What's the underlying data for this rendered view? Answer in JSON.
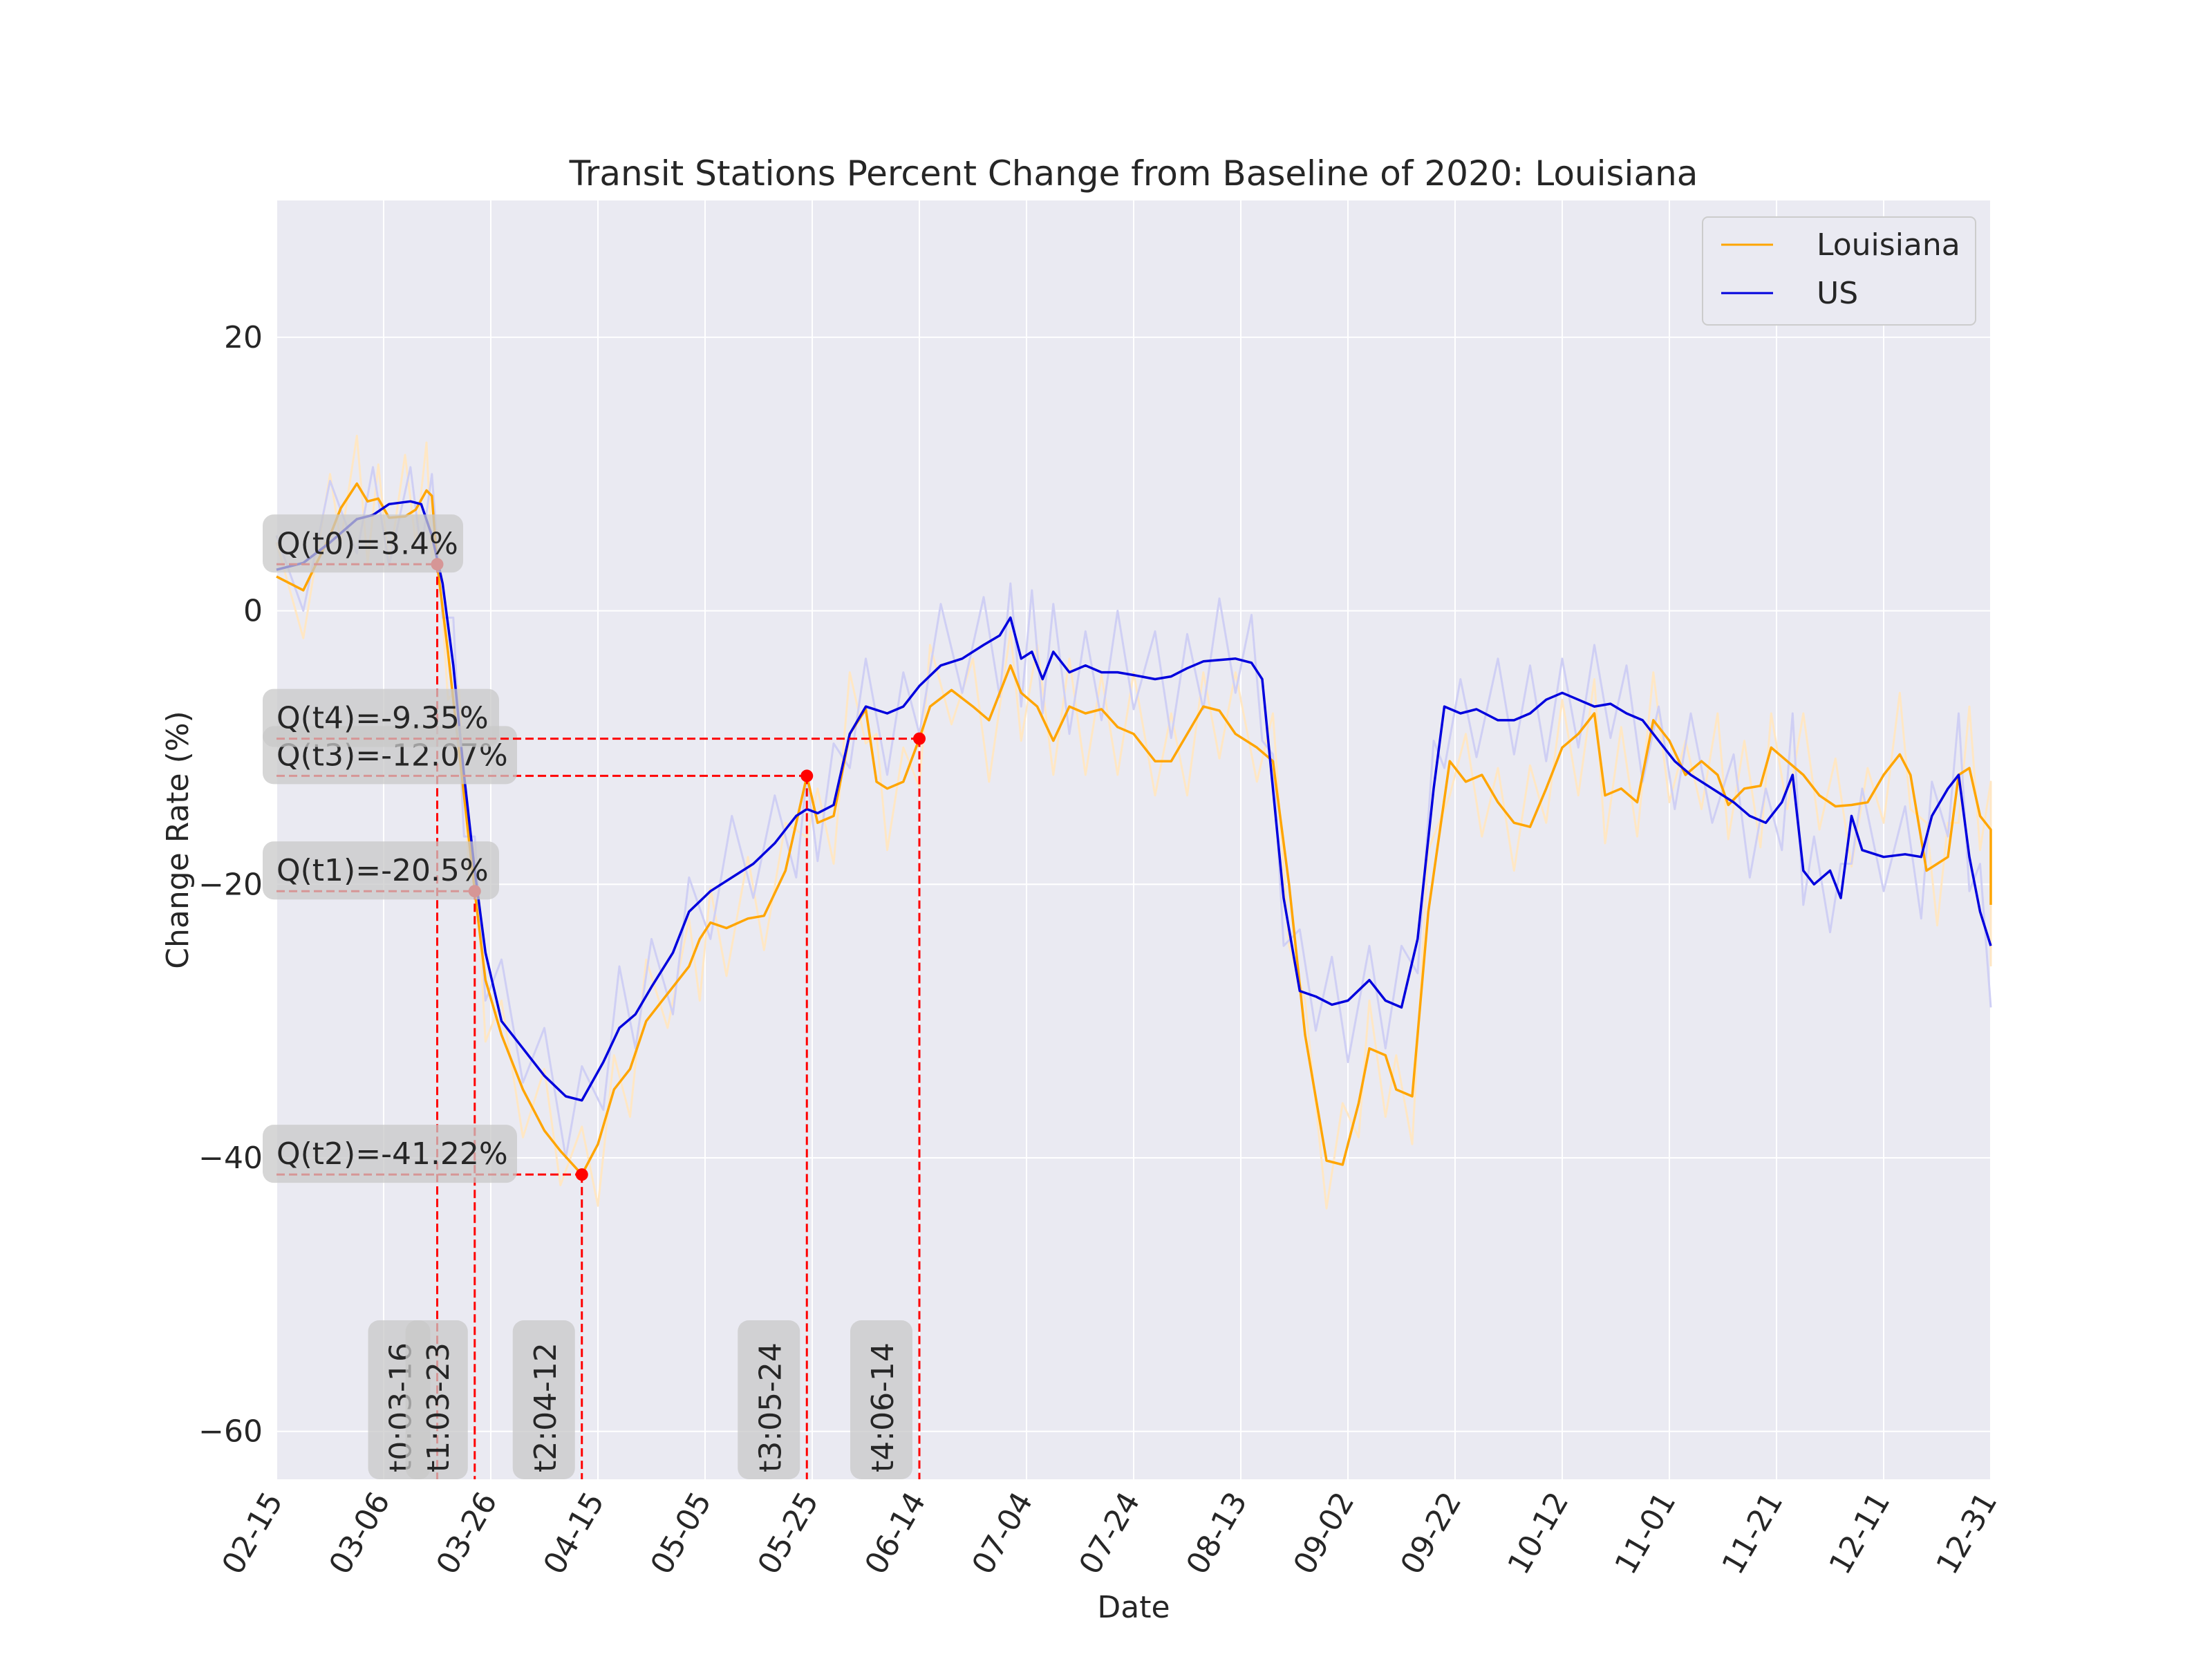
{
  "chart_data": {
    "type": "line",
    "title": "Transit Stations Percent Change from Baseline of 2020: Louisiana",
    "xlabel": "Date",
    "ylabel": "Change Rate (%)",
    "x_range": [
      "2020-02-15",
      "2020-12-31"
    ],
    "ylim": [
      -63.5,
      30
    ],
    "x_ticks": [
      "02-15",
      "03-06",
      "03-26",
      "04-15",
      "05-05",
      "05-25",
      "06-14",
      "07-04",
      "07-24",
      "08-13",
      "09-02",
      "09-22",
      "10-12",
      "11-01",
      "11-21",
      "12-11",
      "12-31"
    ],
    "y_ticks": [
      20,
      0,
      -20,
      -40,
      -60
    ],
    "y_tick_labels": [
      "20",
      "0",
      "−20",
      "−40",
      "−60"
    ],
    "grid": true,
    "legend": {
      "position": "top-right",
      "entries": [
        "Louisiana",
        "US"
      ]
    },
    "colors": {
      "louisiana": "#ffa500",
      "us": "#0000dd",
      "louisiana_raw": "#ffe7c4",
      "us_raw": "#cfcff4",
      "annotation": "#ff0000",
      "background": "#eaeaf2"
    },
    "series": [
      {
        "name": "Louisiana",
        "points": [
          [
            "2020-02-15",
            2.5
          ],
          [
            "2020-02-20",
            1.5
          ],
          [
            "2020-02-25",
            5.5
          ],
          [
            "2020-02-27",
            7.5
          ],
          [
            "2020-03-01",
            9.3
          ],
          [
            "2020-03-03",
            8
          ],
          [
            "2020-03-05",
            8.2
          ],
          [
            "2020-03-07",
            6.8
          ],
          [
            "2020-03-10",
            6.9
          ],
          [
            "2020-03-12",
            7.4
          ],
          [
            "2020-03-14",
            8.8
          ],
          [
            "2020-03-15",
            8.4
          ],
          [
            "2020-03-16",
            3.4
          ],
          [
            "2020-03-18",
            -3
          ],
          [
            "2020-03-20",
            -10
          ],
          [
            "2020-03-22",
            -17
          ],
          [
            "2020-03-23",
            -20.5
          ],
          [
            "2020-03-25",
            -27
          ],
          [
            "2020-03-28",
            -31
          ],
          [
            "2020-04-01",
            -35
          ],
          [
            "2020-04-05",
            -38
          ],
          [
            "2020-04-08",
            -39.5
          ],
          [
            "2020-04-12",
            -41.22
          ],
          [
            "2020-04-15",
            -39
          ],
          [
            "2020-04-18",
            -35
          ],
          [
            "2020-04-21",
            -33.5
          ],
          [
            "2020-04-24",
            -30
          ],
          [
            "2020-04-28",
            -28
          ],
          [
            "2020-05-02",
            -26
          ],
          [
            "2020-05-04",
            -24
          ],
          [
            "2020-05-06",
            -22.8
          ],
          [
            "2020-05-09",
            -23.2
          ],
          [
            "2020-05-13",
            -22.5
          ],
          [
            "2020-05-16",
            -22.3
          ],
          [
            "2020-05-20",
            -19
          ],
          [
            "2020-05-24",
            -12.07
          ],
          [
            "2020-05-26",
            -15.5
          ],
          [
            "2020-05-29",
            -15
          ],
          [
            "2020-06-01",
            -9
          ],
          [
            "2020-06-04",
            -7.2
          ],
          [
            "2020-06-06",
            -12.5
          ],
          [
            "2020-06-08",
            -13
          ],
          [
            "2020-06-11",
            -12.5
          ],
          [
            "2020-06-14",
            -9.35
          ],
          [
            "2020-06-16",
            -7
          ],
          [
            "2020-06-20",
            -5.8
          ],
          [
            "2020-06-24",
            -7
          ],
          [
            "2020-06-27",
            -8
          ],
          [
            "2020-07-01",
            -4
          ],
          [
            "2020-07-03",
            -6
          ],
          [
            "2020-07-06",
            -7
          ],
          [
            "2020-07-09",
            -9.5
          ],
          [
            "2020-07-12",
            -7
          ],
          [
            "2020-07-15",
            -7.5
          ],
          [
            "2020-07-18",
            -7.2
          ],
          [
            "2020-07-21",
            -8.5
          ],
          [
            "2020-07-24",
            -9
          ],
          [
            "2020-07-28",
            -11
          ],
          [
            "2020-07-31",
            -11
          ],
          [
            "2020-08-03",
            -9
          ],
          [
            "2020-08-06",
            -7
          ],
          [
            "2020-08-09",
            -7.3
          ],
          [
            "2020-08-12",
            -9
          ],
          [
            "2020-08-16",
            -10
          ],
          [
            "2020-08-19",
            -11
          ],
          [
            "2020-08-22",
            -20
          ],
          [
            "2020-08-25",
            -31
          ],
          [
            "2020-08-29",
            -40.2
          ],
          [
            "2020-09-01",
            -40.5
          ],
          [
            "2020-09-04",
            -36
          ],
          [
            "2020-09-06",
            -32
          ],
          [
            "2020-09-09",
            -32.5
          ],
          [
            "2020-09-11",
            -35
          ],
          [
            "2020-09-14",
            -35.5
          ],
          [
            "2020-09-17",
            -22
          ],
          [
            "2020-09-21",
            -11
          ],
          [
            "2020-09-24",
            -12.5
          ],
          [
            "2020-09-27",
            -12
          ],
          [
            "2020-09-30",
            -14
          ],
          [
            "2020-10-03",
            -15.5
          ],
          [
            "2020-10-06",
            -15.8
          ],
          [
            "2020-10-09",
            -13
          ],
          [
            "2020-10-12",
            -10
          ],
          [
            "2020-10-15",
            -9
          ],
          [
            "2020-10-18",
            -7.5
          ],
          [
            "2020-10-20",
            -13.5
          ],
          [
            "2020-10-23",
            -13
          ],
          [
            "2020-10-26",
            -14
          ],
          [
            "2020-10-29",
            -8
          ],
          [
            "2020-11-01",
            -9.5
          ],
          [
            "2020-11-04",
            -12
          ],
          [
            "2020-11-07",
            -11
          ],
          [
            "2020-11-10",
            -12
          ],
          [
            "2020-11-12",
            -14.2
          ],
          [
            "2020-11-15",
            -13
          ],
          [
            "2020-11-18",
            -12.8
          ],
          [
            "2020-11-20",
            -10
          ],
          [
            "2020-11-23",
            -11
          ],
          [
            "2020-11-26",
            -12
          ],
          [
            "2020-11-29",
            -13.5
          ],
          [
            "2020-12-02",
            -14.3
          ],
          [
            "2020-12-05",
            -14.2
          ],
          [
            "2020-12-08",
            -14
          ],
          [
            "2020-12-11",
            -12
          ],
          [
            "2020-12-14",
            -10.5
          ],
          [
            "2020-12-16",
            -12
          ],
          [
            "2020-12-19",
            -19
          ],
          [
            "2020-12-21",
            -18.5
          ],
          [
            "2020-12-23",
            -18
          ],
          [
            "2020-12-25",
            -12
          ],
          [
            "2020-12-27",
            -11.5
          ],
          [
            "2020-12-29",
            -15
          ],
          [
            "2020-12-31",
            -16
          ],
          [
            "2020-12-31",
            -21.5
          ]
        ]
      },
      {
        "name": "US",
        "points": [
          [
            "2020-02-15",
            3
          ],
          [
            "2020-02-20",
            3.5
          ],
          [
            "2020-02-25",
            5
          ],
          [
            "2020-03-01",
            6.7
          ],
          [
            "2020-03-04",
            7
          ],
          [
            "2020-03-07",
            7.8
          ],
          [
            "2020-03-11",
            8
          ],
          [
            "2020-03-13",
            7.8
          ],
          [
            "2020-03-15",
            5.5
          ],
          [
            "2020-03-17",
            2
          ],
          [
            "2020-03-19",
            -4
          ],
          [
            "2020-03-21",
            -12
          ],
          [
            "2020-03-23",
            -19
          ],
          [
            "2020-03-25",
            -25
          ],
          [
            "2020-03-28",
            -30
          ],
          [
            "2020-04-01",
            -32
          ],
          [
            "2020-04-05",
            -34
          ],
          [
            "2020-04-09",
            -35.5
          ],
          [
            "2020-04-12",
            -35.8
          ],
          [
            "2020-04-16",
            -33
          ],
          [
            "2020-04-19",
            -30.5
          ],
          [
            "2020-04-22",
            -29.5
          ],
          [
            "2020-04-25",
            -27.5
          ],
          [
            "2020-04-29",
            -25
          ],
          [
            "2020-05-02",
            -22
          ],
          [
            "2020-05-06",
            -20.5
          ],
          [
            "2020-05-10",
            -19.5
          ],
          [
            "2020-05-14",
            -18.5
          ],
          [
            "2020-05-18",
            -17
          ],
          [
            "2020-05-22",
            -15
          ],
          [
            "2020-05-24",
            -14.5
          ],
          [
            "2020-05-26",
            -14.8
          ],
          [
            "2020-05-29",
            -14.2
          ],
          [
            "2020-06-01",
            -9
          ],
          [
            "2020-06-04",
            -7
          ],
          [
            "2020-06-08",
            -7.5
          ],
          [
            "2020-06-11",
            -7
          ],
          [
            "2020-06-14",
            -5.5
          ],
          [
            "2020-06-18",
            -4
          ],
          [
            "2020-06-22",
            -3.5
          ],
          [
            "2020-06-26",
            -2.5
          ],
          [
            "2020-06-29",
            -1.8
          ],
          [
            "2020-07-01",
            -0.5
          ],
          [
            "2020-07-03",
            -3.5
          ],
          [
            "2020-07-05",
            -3
          ],
          [
            "2020-07-07",
            -5
          ],
          [
            "2020-07-09",
            -3
          ],
          [
            "2020-07-12",
            -4.5
          ],
          [
            "2020-07-15",
            -4
          ],
          [
            "2020-07-18",
            -4.5
          ],
          [
            "2020-07-21",
            -4.5
          ],
          [
            "2020-07-24",
            -4.7
          ],
          [
            "2020-07-28",
            -5
          ],
          [
            "2020-07-31",
            -4.8
          ],
          [
            "2020-08-03",
            -4.2
          ],
          [
            "2020-08-06",
            -3.7
          ],
          [
            "2020-08-09",
            -3.6
          ],
          [
            "2020-08-12",
            -3.5
          ],
          [
            "2020-08-15",
            -3.8
          ],
          [
            "2020-08-17",
            -5
          ],
          [
            "2020-08-19",
            -13
          ],
          [
            "2020-08-21",
            -21
          ],
          [
            "2020-08-24",
            -27.8
          ],
          [
            "2020-08-27",
            -28.2
          ],
          [
            "2020-08-30",
            -28.8
          ],
          [
            "2020-09-02",
            -28.5
          ],
          [
            "2020-09-06",
            -27
          ],
          [
            "2020-09-09",
            -28.5
          ],
          [
            "2020-09-12",
            -29
          ],
          [
            "2020-09-15",
            -24
          ],
          [
            "2020-09-18",
            -13
          ],
          [
            "2020-09-20",
            -7
          ],
          [
            "2020-09-23",
            -7.5
          ],
          [
            "2020-09-26",
            -7.2
          ],
          [
            "2020-09-30",
            -8
          ],
          [
            "2020-10-03",
            -8
          ],
          [
            "2020-10-06",
            -7.5
          ],
          [
            "2020-10-09",
            -6.5
          ],
          [
            "2020-10-12",
            -6
          ],
          [
            "2020-10-15",
            -6.5
          ],
          [
            "2020-10-18",
            -7
          ],
          [
            "2020-10-21",
            -6.8
          ],
          [
            "2020-10-24",
            -7.5
          ],
          [
            "2020-10-27",
            -8
          ],
          [
            "2020-10-30",
            -9.5
          ],
          [
            "2020-11-02",
            -11
          ],
          [
            "2020-11-05",
            -12
          ],
          [
            "2020-11-09",
            -13
          ],
          [
            "2020-11-13",
            -14
          ],
          [
            "2020-11-16",
            -15
          ],
          [
            "2020-11-19",
            -15.5
          ],
          [
            "2020-11-22",
            -14
          ],
          [
            "2020-11-24",
            -12
          ],
          [
            "2020-11-26",
            -19
          ],
          [
            "2020-11-28",
            -20
          ],
          [
            "2020-12-01",
            -19
          ],
          [
            "2020-12-03",
            -21
          ],
          [
            "2020-12-05",
            -15
          ],
          [
            "2020-12-07",
            -17.5
          ],
          [
            "2020-12-11",
            -18
          ],
          [
            "2020-12-15",
            -17.8
          ],
          [
            "2020-12-18",
            -18
          ],
          [
            "2020-12-20",
            -15
          ],
          [
            "2020-12-23",
            -13
          ],
          [
            "2020-12-25",
            -12
          ],
          [
            "2020-12-27",
            -18
          ],
          [
            "2020-12-29",
            -22
          ],
          [
            "2020-12-31",
            -24.5
          ]
        ]
      }
    ],
    "annotations": [
      {
        "point_label": "Q(t0)=3.4%",
        "date_label": "t0:03-16",
        "date": "2020-03-16",
        "value": 3.4
      },
      {
        "point_label": "Q(t1)=-20.5%",
        "date_label": "t1:03-23",
        "date": "2020-03-23",
        "value": -20.5
      },
      {
        "point_label": "Q(t2)=-41.22%",
        "date_label": "t2:04-12",
        "date": "2020-04-12",
        "value": -41.22
      },
      {
        "point_label": "Q(t3)=-12.07%",
        "date_label": "t3:05-24",
        "date": "2020-05-24",
        "value": -12.07
      },
      {
        "point_label": "Q(t4)=-9.35%",
        "date_label": "t4:06-14",
        "date": "2020-06-14",
        "value": -9.35
      }
    ]
  }
}
